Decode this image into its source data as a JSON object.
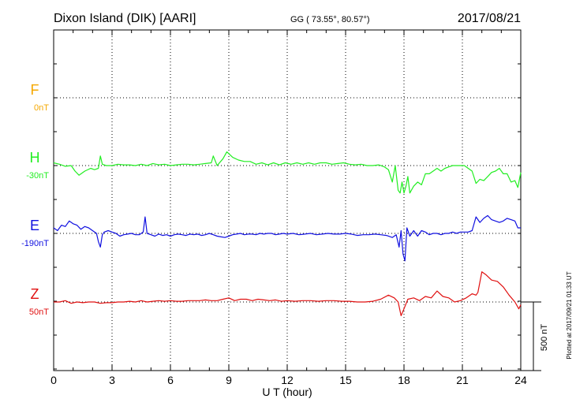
{
  "chart_data": {
    "type": "line",
    "title": {
      "station": "Dixon Island (DIK)  [AARI]",
      "coords": "GG ( 73.55°,  80.57°)",
      "date": "2017/08/21"
    },
    "xlabel": "U T (hour)",
    "x_ticks": [
      "0",
      "3",
      "6",
      "9",
      "12",
      "15",
      "18",
      "21",
      "24"
    ],
    "xlim": [
      0,
      24
    ],
    "scale_label": "500 nT",
    "plotted_note": "Plotted at 2017/09/21 01:33 UT",
    "grid": true,
    "series": [
      {
        "key": "F",
        "name": "F",
        "baseline_label": "0nT",
        "color": "#f5a800",
        "x": [],
        "y": []
      },
      {
        "key": "H",
        "name": "H",
        "baseline_label": "-30nT",
        "color": "#22ee22",
        "x": [
          0,
          0.3,
          0.6,
          0.9,
          1.1,
          1.3,
          1.6,
          1.9,
          2.1,
          2.3,
          2.4,
          2.5,
          2.7,
          3.0,
          3.3,
          3.6,
          3.9,
          4.2,
          4.5,
          4.8,
          5.1,
          5.4,
          5.7,
          6.0,
          6.3,
          6.6,
          6.9,
          7.2,
          7.5,
          7.8,
          8.1,
          8.2,
          8.4,
          8.7,
          8.9,
          9.2,
          9.5,
          9.8,
          10.1,
          10.4,
          10.7,
          11.0,
          11.3,
          11.6,
          11.9,
          12.2,
          12.5,
          12.8,
          13.1,
          13.4,
          13.7,
          14.0,
          14.3,
          14.6,
          14.9,
          15.2,
          15.5,
          15.8,
          16.1,
          16.4,
          16.7,
          17.0,
          17.2,
          17.4,
          17.55,
          17.7,
          17.8,
          17.9,
          18.0,
          18.1,
          18.2,
          18.3,
          18.5,
          18.7,
          18.9,
          19.1,
          19.3,
          19.5,
          19.7,
          19.9,
          20.1,
          20.3,
          20.5,
          20.7,
          20.9,
          21.1,
          21.3,
          21.5,
          21.7,
          21.9,
          22.1,
          22.3,
          22.5,
          22.7,
          22.9,
          23.1,
          23.3,
          23.5,
          23.7,
          23.85,
          24.0
        ],
        "y": [
          20,
          10,
          -5,
          0,
          -40,
          -70,
          -40,
          -20,
          -30,
          -20,
          70,
          10,
          0,
          0,
          10,
          5,
          5,
          0,
          10,
          0,
          15,
          5,
          10,
          0,
          5,
          10,
          10,
          5,
          10,
          15,
          20,
          70,
          0,
          50,
          100,
          60,
          40,
          30,
          30,
          10,
          20,
          5,
          20,
          5,
          20,
          10,
          20,
          10,
          20,
          10,
          20,
          20,
          10,
          15,
          20,
          10,
          5,
          10,
          0,
          0,
          5,
          -10,
          -30,
          -120,
          0,
          -180,
          -200,
          -120,
          -200,
          -150,
          -80,
          -200,
          -150,
          -120,
          -140,
          -60,
          -60,
          -40,
          -20,
          -40,
          -20,
          -10,
          0,
          0,
          0,
          0,
          -20,
          -40,
          -130,
          -100,
          -110,
          -80,
          -50,
          -40,
          -20,
          -60,
          -60,
          -120,
          -110,
          -160,
          -50
        ]
      },
      {
        "key": "E",
        "name": "E",
        "baseline_label": "-190nT",
        "color": "#1010e0",
        "x": [
          0,
          0.2,
          0.4,
          0.6,
          0.8,
          1.0,
          1.2,
          1.4,
          1.6,
          1.8,
          2.0,
          2.2,
          2.3,
          2.4,
          2.5,
          2.6,
          2.8,
          3.0,
          3.2,
          3.4,
          3.6,
          3.8,
          4.0,
          4.2,
          4.4,
          4.6,
          4.7,
          4.8,
          5.0,
          5.2,
          5.4,
          5.6,
          5.8,
          6.0,
          6.2,
          6.4,
          6.6,
          6.8,
          7.0,
          7.2,
          7.4,
          7.6,
          7.8,
          8.0,
          8.2,
          8.4,
          8.6,
          8.8,
          9.0,
          9.2,
          9.4,
          9.6,
          9.8,
          10.0,
          10.2,
          10.4,
          10.6,
          10.8,
          11.0,
          11.2,
          11.4,
          11.6,
          11.8,
          12.0,
          12.3,
          12.6,
          12.9,
          13.2,
          13.5,
          13.8,
          14.1,
          14.4,
          14.7,
          15.0,
          15.3,
          15.6,
          15.9,
          16.2,
          16.5,
          16.8,
          17.1,
          17.4,
          17.6,
          17.75,
          17.85,
          17.95,
          18.05,
          18.15,
          18.3,
          18.5,
          18.7,
          18.9,
          19.1,
          19.3,
          19.5,
          19.7,
          19.9,
          20.1,
          20.3,
          20.5,
          20.7,
          20.9,
          21.1,
          21.3,
          21.5,
          21.7,
          21.9,
          22.1,
          22.3,
          22.5,
          22.7,
          22.9,
          23.1,
          23.3,
          23.5,
          23.7,
          23.85,
          24.0
        ],
        "y": [
          40,
          20,
          60,
          50,
          90,
          70,
          60,
          30,
          50,
          40,
          20,
          0,
          -60,
          -100,
          -10,
          10,
          20,
          10,
          0,
          -20,
          -10,
          -5,
          0,
          -10,
          -10,
          10,
          120,
          0,
          -10,
          -20,
          -5,
          -15,
          -10,
          -20,
          -10,
          -5,
          -10,
          -15,
          -5,
          -10,
          -5,
          -15,
          -10,
          0,
          -10,
          -20,
          -25,
          -30,
          -20,
          -10,
          -5,
          0,
          -10,
          -5,
          -5,
          -10,
          0,
          -5,
          0,
          0,
          -10,
          -5,
          0,
          -5,
          0,
          -10,
          -5,
          0,
          -10,
          -5,
          0,
          -5,
          -5,
          0,
          -5,
          -15,
          -10,
          -10,
          -5,
          -10,
          -15,
          -30,
          -10,
          -100,
          20,
          -150,
          -200,
          40,
          -20,
          20,
          -20,
          20,
          10,
          -10,
          0,
          0,
          -10,
          0,
          0,
          10,
          0,
          10,
          10,
          10,
          20,
          120,
          80,
          110,
          130,
          100,
          90,
          80,
          90,
          110,
          100,
          90,
          40,
          40
        ]
      },
      {
        "key": "Z",
        "name": "Z",
        "baseline_label": "50nT",
        "color": "#e01010",
        "x": [
          0,
          0.3,
          0.6,
          0.9,
          1.2,
          1.5,
          1.8,
          2.1,
          2.4,
          2.7,
          3.0,
          3.3,
          3.6,
          3.9,
          4.2,
          4.5,
          4.8,
          5.1,
          5.4,
          5.7,
          6.0,
          6.3,
          6.6,
          6.9,
          7.2,
          7.5,
          7.8,
          8.1,
          8.4,
          8.7,
          9.0,
          9.3,
          9.6,
          9.9,
          10.2,
          10.5,
          10.8,
          11.1,
          11.4,
          11.7,
          12.0,
          12.4,
          12.8,
          13.2,
          13.6,
          14.0,
          14.4,
          14.8,
          15.2,
          15.6,
          16.0,
          16.4,
          16.8,
          17.2,
          17.5,
          17.7,
          17.85,
          18.0,
          18.2,
          18.5,
          18.8,
          19.1,
          19.4,
          19.7,
          20.0,
          20.3,
          20.6,
          20.9,
          21.2,
          21.5,
          21.7,
          21.8,
          22.0,
          22.2,
          22.5,
          22.8,
          23.1,
          23.4,
          23.7,
          23.9,
          24.0
        ],
        "y": [
          0,
          0,
          10,
          -10,
          0,
          -5,
          0,
          0,
          -10,
          -5,
          -5,
          0,
          0,
          5,
          0,
          10,
          0,
          5,
          10,
          5,
          10,
          5,
          5,
          10,
          10,
          10,
          15,
          10,
          10,
          20,
          30,
          10,
          20,
          20,
          10,
          20,
          15,
          10,
          15,
          5,
          10,
          5,
          10,
          10,
          5,
          10,
          10,
          5,
          5,
          0,
          0,
          5,
          20,
          50,
          30,
          0,
          -100,
          -50,
          20,
          30,
          10,
          40,
          30,
          80,
          40,
          30,
          0,
          10,
          30,
          60,
          50,
          70,
          220,
          200,
          160,
          150,
          110,
          50,
          0,
          -50,
          -20
        ]
      }
    ]
  }
}
